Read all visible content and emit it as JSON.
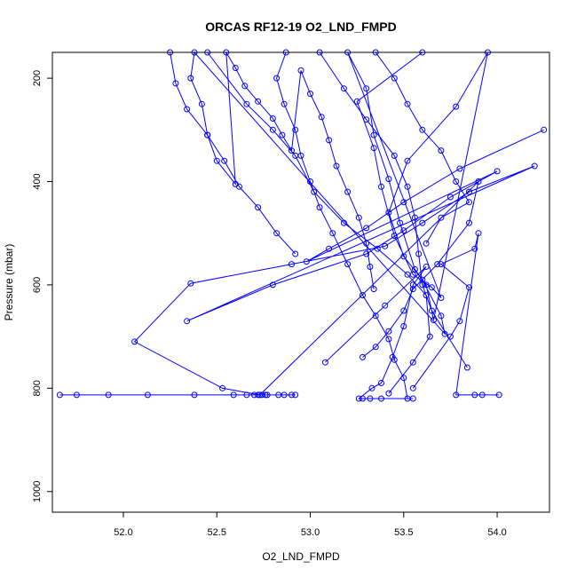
{
  "chart_data": {
    "type": "line",
    "title": "ORCAS RF12-19 O2_LND_FMPD",
    "xlabel": "O2_LND_FMPD",
    "ylabel": "Pressure (mbar)",
    "xlim": [
      51.62,
      54.28
    ],
    "ylim": [
      1040,
      150
    ],
    "y_reversed": true,
    "x_ticks": [
      "52.0",
      "52.5",
      "53.0",
      "53.5",
      "54.0"
    ],
    "y_ticks": [
      "200",
      "400",
      "600",
      "800",
      "1000"
    ],
    "grid": false,
    "colors": {
      "series": "#0000ff",
      "axis": "#000000"
    },
    "series": [
      {
        "values": [
          [
            53.6,
            150
          ],
          [
            53.25,
            245
          ],
          [
            53.34,
            335
          ],
          [
            53.38,
            410
          ],
          [
            53.45,
            505
          ],
          [
            53.55,
            580
          ],
          [
            53.65,
            605
          ],
          [
            53.7,
            625
          ],
          [
            53.2,
            150
          ],
          [
            53.3,
            220
          ],
          [
            53.34,
            310
          ],
          [
            53.42,
            395
          ],
          [
            53.48,
            480
          ],
          [
            53.56,
            570
          ],
          [
            53.62,
            600
          ],
          [
            53.66,
            668
          ],
          [
            53.95,
            150
          ],
          [
            53.78,
            255
          ],
          [
            53.52,
            360
          ],
          [
            53.42,
            460
          ],
          [
            53.5,
            545
          ],
          [
            53.6,
            590
          ],
          [
            53.7,
            660
          ],
          [
            53.72,
            695
          ],
          [
            52.38,
            150
          ],
          [
            52.36,
            200
          ],
          [
            52.42,
            250
          ],
          [
            52.45,
            310
          ],
          [
            52.5,
            360
          ],
          [
            52.6,
            405
          ],
          [
            52.55,
            150
          ],
          [
            52.6,
            180
          ],
          [
            52.65,
            215
          ],
          [
            52.72,
            245
          ],
          [
            52.8,
            278
          ],
          [
            52.85,
            310
          ],
          [
            52.9,
            340
          ],
          [
            52.95,
            185
          ],
          [
            53.0,
            230
          ],
          [
            53.06,
            275
          ],
          [
            53.1,
            320
          ],
          [
            53.14,
            370
          ],
          [
            53.2,
            420
          ],
          [
            53.26,
            470
          ],
          [
            53.3,
            520
          ],
          [
            53.32,
            565
          ],
          [
            53.34,
            608
          ]
        ]
      },
      {
        "values": [
          [
            54.25,
            300
          ],
          [
            53.8,
            375
          ],
          [
            53.5,
            440
          ],
          [
            53.3,
            490
          ],
          [
            53.1,
            530
          ],
          [
            52.98,
            555
          ],
          [
            54.0,
            380
          ],
          [
            53.75,
            430
          ],
          [
            53.5,
            495
          ],
          [
            53.3,
            540
          ],
          [
            52.8,
            600
          ],
          [
            52.34,
            670
          ],
          [
            54.2,
            370
          ],
          [
            53.85,
            420
          ],
          [
            53.6,
            480
          ],
          [
            53.4,
            525
          ],
          [
            52.9,
            560
          ],
          [
            52.36,
            597
          ],
          [
            52.06,
            710
          ],
          [
            52.53,
            800
          ],
          [
            52.73,
            813
          ],
          [
            53.9,
            400
          ],
          [
            53.85,
            480
          ],
          [
            53.68,
            560
          ],
          [
            53.55,
            608
          ],
          [
            53.5,
            650
          ],
          [
            53.42,
            690
          ],
          [
            53.35,
            720
          ],
          [
            53.28,
            740
          ]
        ]
      },
      {
        "values": [
          [
            51.66,
            813
          ],
          [
            51.75,
            813
          ],
          [
            51.92,
            813
          ],
          [
            52.13,
            813
          ],
          [
            52.38,
            813
          ],
          [
            52.59,
            813
          ],
          [
            52.66,
            813
          ],
          [
            52.7,
            813
          ],
          [
            52.72,
            813
          ],
          [
            52.74,
            813
          ],
          [
            52.76,
            813
          ],
          [
            52.77,
            813
          ],
          [
            52.83,
            813
          ],
          [
            52.86,
            813
          ],
          [
            52.9,
            813
          ],
          [
            52.92,
            813
          ]
        ]
      },
      {
        "values": [
          [
            53.08,
            750
          ],
          [
            53.4,
            640
          ],
          [
            53.62,
            565
          ],
          [
            53.55,
            600
          ],
          [
            53.5,
            680
          ],
          [
            53.44,
            740
          ],
          [
            53.38,
            790
          ],
          [
            53.33,
            800
          ],
          [
            53.26,
            820
          ],
          [
            53.28,
            820
          ],
          [
            53.32,
            820
          ],
          [
            53.38,
            820
          ],
          [
            53.55,
            820
          ]
        ]
      },
      {
        "values": [
          [
            53.55,
            800
          ],
          [
            53.75,
            700
          ],
          [
            53.8,
            670
          ],
          [
            53.85,
            605
          ],
          [
            53.7,
            560
          ],
          [
            53.88,
            530
          ],
          [
            53.9,
            500
          ],
          [
            53.78,
            813
          ],
          [
            53.88,
            813
          ],
          [
            53.92,
            813
          ],
          [
            54.01,
            813
          ]
        ]
      },
      {
        "values": [
          [
            52.87,
            150
          ],
          [
            52.82,
            200
          ],
          [
            52.86,
            250
          ],
          [
            52.92,
            300
          ],
          [
            52.95,
            350
          ],
          [
            53.0,
            400
          ],
          [
            53.05,
            450
          ],
          [
            53.12,
            500
          ],
          [
            53.2,
            560
          ],
          [
            53.28,
            620
          ],
          [
            53.35,
            660
          ],
          [
            53.42,
            705
          ],
          [
            53.45,
            745
          ],
          [
            53.5,
            780
          ],
          [
            53.52,
            820
          ]
        ]
      },
      {
        "values": [
          [
            52.45,
            150
          ],
          [
            52.66,
            250
          ],
          [
            52.8,
            300
          ],
          [
            52.92,
            350
          ],
          [
            53.02,
            420
          ],
          [
            53.18,
            480
          ],
          [
            53.36,
            530
          ],
          [
            53.52,
            580
          ],
          [
            53.62,
            620
          ],
          [
            53.64,
            700
          ],
          [
            53.55,
            750
          ],
          [
            53.42,
            810
          ]
        ]
      },
      {
        "values": [
          [
            53.05,
            150
          ],
          [
            53.18,
            220
          ],
          [
            53.3,
            280
          ],
          [
            53.45,
            350
          ],
          [
            53.52,
            410
          ],
          [
            53.56,
            470
          ],
          [
            53.58,
            540
          ],
          [
            53.6,
            600
          ],
          [
            53.65,
            650
          ],
          [
            53.84,
            760
          ]
        ]
      },
      {
        "values": [
          [
            52.25,
            150
          ],
          [
            52.28,
            210
          ],
          [
            52.34,
            260
          ],
          [
            52.45,
            310
          ],
          [
            52.54,
            360
          ],
          [
            52.62,
            410
          ],
          [
            52.72,
            450
          ],
          [
            52.82,
            500
          ],
          [
            52.92,
            540
          ]
        ]
      },
      {
        "values": [
          [
            53.35,
            150
          ],
          [
            53.45,
            200
          ],
          [
            53.52,
            250
          ],
          [
            53.6,
            300
          ],
          [
            53.7,
            340
          ],
          [
            53.78,
            400
          ],
          [
            53.85,
            440
          ],
          [
            53.7,
            470
          ],
          [
            53.62,
            520
          ]
        ]
      }
    ]
  }
}
